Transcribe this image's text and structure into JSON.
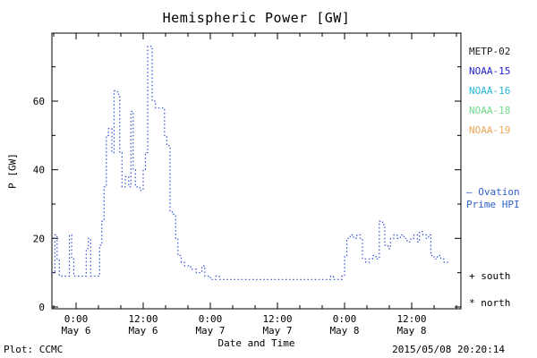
{
  "title": "Hemispheric Power [GW]",
  "axes": {
    "ylabel": "P [GW]",
    "xlabel": "Date and Time"
  },
  "legend": {
    "satellites": [
      {
        "label": "METP-02",
        "color": "#1a1a1a"
      },
      {
        "label": "NOAA-15",
        "color": "#2121cc"
      },
      {
        "label": "NOAA-16",
        "color": "#22b8d8"
      },
      {
        "label": "NOAA-18",
        "color": "#6fd98c"
      },
      {
        "label": "NOAA-19",
        "color": "#f0a858"
      }
    ],
    "ovation_line1": "– Ovation",
    "ovation_line2": "Prime HPI",
    "ovation_color": "#3060c8",
    "south": "+ south",
    "north": "* north"
  },
  "footer": {
    "plot": "Plot: CCMC",
    "timestamp": "2015/05/08 20:20:14"
  },
  "chart_data": {
    "type": "line",
    "style": "dotted-step",
    "title": "Hemispheric Power [GW]",
    "xlabel": "Date and Time",
    "ylabel": "P [GW]",
    "ylim": [
      0,
      79
    ],
    "xlim_hours_from_may6_0000": [
      -4.3,
      68.8
    ],
    "y_ticks": [
      0,
      20,
      40,
      60
    ],
    "x_ticks": [
      {
        "h": 0,
        "time": "0:00",
        "date": "May 6"
      },
      {
        "h": 12,
        "time": "12:00",
        "date": "May 6"
      },
      {
        "h": 24,
        "time": "0:00",
        "date": "May 7"
      },
      {
        "h": 36,
        "time": "12:00",
        "date": "May 7"
      },
      {
        "h": 48,
        "time": "0:00",
        "date": "May 8"
      },
      {
        "h": 60,
        "time": "12:00",
        "date": "May 8"
      }
    ],
    "series": [
      {
        "name": "Ovation Prime HPI",
        "color": "#3050cc",
        "units": "GW",
        "points": [
          [
            -4.3,
            10
          ],
          [
            -3.8,
            10
          ],
          [
            -3.8,
            21
          ],
          [
            -3.4,
            21
          ],
          [
            -3.4,
            14
          ],
          [
            -3.0,
            14
          ],
          [
            -3.0,
            9
          ],
          [
            -1.2,
            9
          ],
          [
            -1.2,
            21
          ],
          [
            -0.8,
            21
          ],
          [
            -0.8,
            14
          ],
          [
            -0.4,
            14
          ],
          [
            -0.4,
            9
          ],
          [
            1.8,
            9
          ],
          [
            1.8,
            17
          ],
          [
            2.2,
            17
          ],
          [
            2.2,
            20
          ],
          [
            2.6,
            20
          ],
          [
            2.6,
            9
          ],
          [
            4.2,
            9
          ],
          [
            4.2,
            18
          ],
          [
            4.6,
            18
          ],
          [
            4.6,
            25
          ],
          [
            5.0,
            25
          ],
          [
            5.0,
            35
          ],
          [
            5.4,
            35
          ],
          [
            5.4,
            50
          ],
          [
            5.8,
            50
          ],
          [
            5.8,
            52
          ],
          [
            6.4,
            52
          ],
          [
            6.4,
            45
          ],
          [
            6.8,
            45
          ],
          [
            6.8,
            63
          ],
          [
            7.4,
            63
          ],
          [
            7.4,
            62
          ],
          [
            7.8,
            62
          ],
          [
            7.8,
            45
          ],
          [
            8.2,
            45
          ],
          [
            8.2,
            35
          ],
          [
            8.8,
            35
          ],
          [
            8.8,
            38
          ],
          [
            9.4,
            38
          ],
          [
            9.4,
            35
          ],
          [
            9.8,
            35
          ],
          [
            9.8,
            57
          ],
          [
            10.2,
            57
          ],
          [
            10.2,
            40
          ],
          [
            10.6,
            40
          ],
          [
            10.6,
            35
          ],
          [
            11.4,
            35
          ],
          [
            11.4,
            34
          ],
          [
            12.0,
            34
          ],
          [
            12.0,
            40
          ],
          [
            12.4,
            40
          ],
          [
            12.4,
            45
          ],
          [
            12.8,
            45
          ],
          [
            12.8,
            76
          ],
          [
            13.6,
            76
          ],
          [
            13.6,
            60
          ],
          [
            14.2,
            60
          ],
          [
            14.2,
            58
          ],
          [
            15.8,
            58
          ],
          [
            15.8,
            50
          ],
          [
            16.2,
            50
          ],
          [
            16.2,
            47
          ],
          [
            16.8,
            47
          ],
          [
            16.8,
            28
          ],
          [
            17.2,
            28
          ],
          [
            17.2,
            27
          ],
          [
            17.8,
            27
          ],
          [
            17.8,
            20
          ],
          [
            18.2,
            20
          ],
          [
            18.2,
            15
          ],
          [
            18.8,
            15
          ],
          [
            18.8,
            13
          ],
          [
            19.4,
            13
          ],
          [
            19.4,
            12
          ],
          [
            20.5,
            12
          ],
          [
            20.5,
            11
          ],
          [
            21.5,
            11
          ],
          [
            21.5,
            10
          ],
          [
            22.5,
            10
          ],
          [
            22.5,
            12
          ],
          [
            23.0,
            12
          ],
          [
            23.0,
            9
          ],
          [
            24.0,
            9
          ],
          [
            24.0,
            8
          ],
          [
            25.0,
            8
          ],
          [
            25.0,
            9
          ],
          [
            25.6,
            9
          ],
          [
            25.6,
            8
          ],
          [
            45.5,
            8
          ],
          [
            45.5,
            9
          ],
          [
            46.0,
            9
          ],
          [
            46.0,
            8
          ],
          [
            47.5,
            8
          ],
          [
            47.5,
            9
          ],
          [
            48.0,
            9
          ],
          [
            48.0,
            15
          ],
          [
            48.4,
            15
          ],
          [
            48.4,
            20
          ],
          [
            49.0,
            20
          ],
          [
            49.0,
            21
          ],
          [
            49.6,
            21
          ],
          [
            49.6,
            20
          ],
          [
            50.2,
            20
          ],
          [
            50.2,
            21
          ],
          [
            50.8,
            21
          ],
          [
            50.8,
            20
          ],
          [
            51.2,
            20
          ],
          [
            51.2,
            14
          ],
          [
            51.8,
            14
          ],
          [
            51.8,
            13
          ],
          [
            52.4,
            13
          ],
          [
            52.4,
            14
          ],
          [
            53.0,
            14
          ],
          [
            53.0,
            15
          ],
          [
            53.6,
            15
          ],
          [
            53.6,
            14
          ],
          [
            54.2,
            14
          ],
          [
            54.2,
            25
          ],
          [
            54.8,
            25
          ],
          [
            54.8,
            24
          ],
          [
            55.2,
            24
          ],
          [
            55.2,
            18
          ],
          [
            55.8,
            18
          ],
          [
            55.8,
            17
          ],
          [
            56.2,
            17
          ],
          [
            56.2,
            20
          ],
          [
            56.8,
            20
          ],
          [
            56.8,
            21
          ],
          [
            57.4,
            21
          ],
          [
            57.4,
            20
          ],
          [
            58.0,
            20
          ],
          [
            58.0,
            21
          ],
          [
            58.6,
            21
          ],
          [
            58.6,
            20
          ],
          [
            59.2,
            20
          ],
          [
            59.2,
            19
          ],
          [
            59.8,
            19
          ],
          [
            59.8,
            20
          ],
          [
            60.4,
            20
          ],
          [
            60.4,
            21
          ],
          [
            61.0,
            21
          ],
          [
            61.0,
            19
          ],
          [
            61.4,
            19
          ],
          [
            61.4,
            22
          ],
          [
            62.0,
            22
          ],
          [
            62.0,
            21
          ],
          [
            62.6,
            21
          ],
          [
            62.6,
            20
          ],
          [
            63.0,
            20
          ],
          [
            63.0,
            21
          ],
          [
            63.4,
            21
          ],
          [
            63.4,
            15
          ],
          [
            64.0,
            15
          ],
          [
            64.0,
            14
          ],
          [
            64.6,
            14
          ],
          [
            64.6,
            15
          ],
          [
            65.2,
            15
          ],
          [
            65.2,
            14
          ],
          [
            65.8,
            14
          ],
          [
            65.8,
            13
          ],
          [
            66.6,
            13
          ]
        ]
      }
    ],
    "legend_entries": [
      "METP-02",
      "NOAA-15",
      "NOAA-16",
      "NOAA-18",
      "NOAA-19"
    ],
    "legend_position": "right",
    "grid": false
  }
}
